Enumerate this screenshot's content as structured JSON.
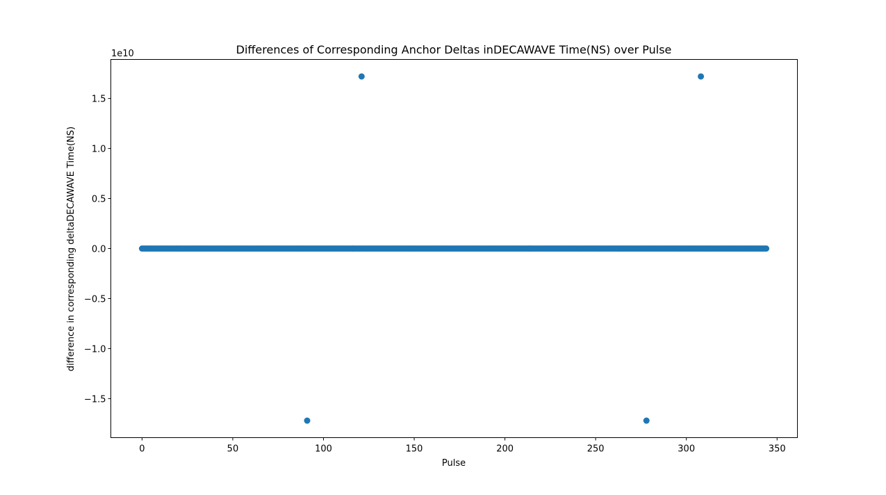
{
  "chart_data": {
    "type": "scatter",
    "title": "Differences of Corresponding Anchor Deltas inDECAWAVE Time(NS) over Pulse",
    "xlabel": "Pulse",
    "ylabel": "difference in corresponding deltaDECAWAVE Time(NS)",
    "y_offset_label": "1e10",
    "xlim": [
      -17.2,
      361.2
    ],
    "ylim": [
      -1.89,
      1.89
    ],
    "y_unit_scale": 10000000000,
    "x_ticks": [
      0,
      50,
      100,
      150,
      200,
      250,
      300,
      350
    ],
    "x_tick_labels": [
      "0",
      "50",
      "100",
      "150",
      "200",
      "250",
      "300",
      "350"
    ],
    "y_ticks": [
      -1.5,
      -1.0,
      -0.5,
      0.0,
      0.5,
      1.0,
      1.5
    ],
    "y_tick_labels": [
      "−1.5",
      "−1.0",
      "−0.5",
      "0.0",
      "0.5",
      "1.0",
      "1.5"
    ],
    "grid": false,
    "marker_color": "#1f77b4",
    "baseline": {
      "x_start": 0,
      "x_end": 344,
      "y": 0.0
    },
    "outliers": [
      {
        "x": 91,
        "y": -1.72
      },
      {
        "x": 121,
        "y": 1.72
      },
      {
        "x": 278,
        "y": -1.72
      },
      {
        "x": 308,
        "y": 1.72
      }
    ]
  }
}
